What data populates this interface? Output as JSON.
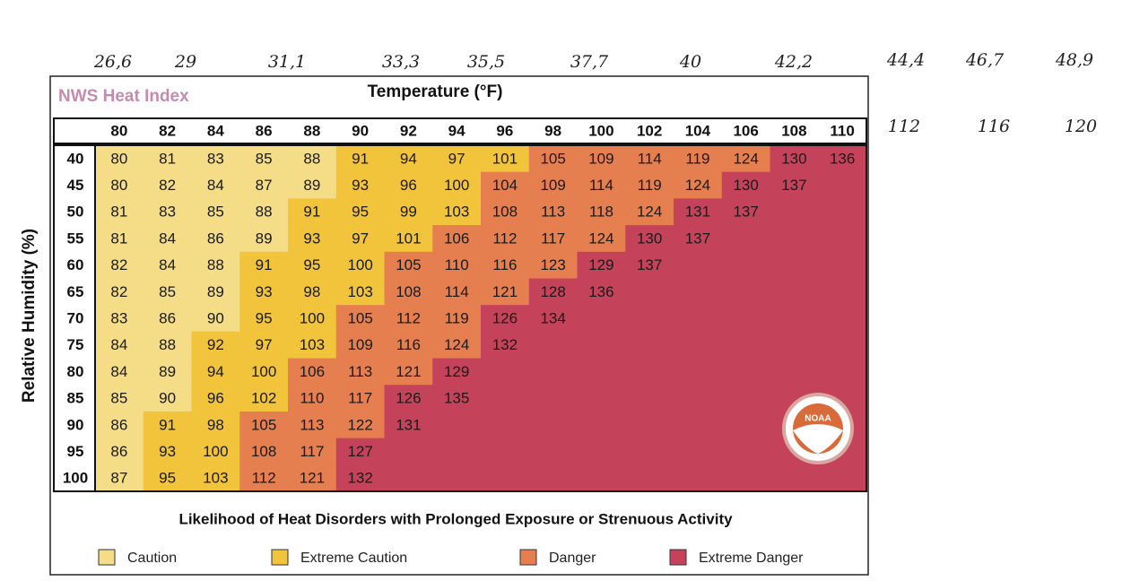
{
  "handwritten": {
    "celsius": [
      "26,6",
      "29",
      "31,1",
      "33,3",
      "35,5",
      "37,7",
      "40",
      "42,2",
      "44,4",
      "46,7",
      "48,9"
    ],
    "extra_fahrenheit": [
      "112",
      "116",
      "120"
    ]
  },
  "title": "NWS Heat Index",
  "column_header": "Temperature (°F)",
  "row_header": "Relative Humidity (%)",
  "table": {
    "columns": [
      80,
      82,
      84,
      86,
      88,
      90,
      92,
      94,
      96,
      98,
      100,
      102,
      104,
      106,
      108,
      110
    ],
    "rows": [
      {
        "humidity": 40,
        "values": [
          80,
          81,
          83,
          85,
          88,
          91,
          94,
          97,
          101,
          105,
          109,
          114,
          119,
          124,
          130,
          136
        ]
      },
      {
        "humidity": 45,
        "values": [
          80,
          82,
          84,
          87,
          89,
          93,
          96,
          100,
          104,
          109,
          114,
          119,
          124,
          130,
          137
        ]
      },
      {
        "humidity": 50,
        "values": [
          81,
          83,
          85,
          88,
          91,
          95,
          99,
          103,
          108,
          113,
          118,
          124,
          131,
          137
        ]
      },
      {
        "humidity": 55,
        "values": [
          81,
          84,
          86,
          89,
          93,
          97,
          101,
          106,
          112,
          117,
          124,
          130,
          137
        ]
      },
      {
        "humidity": 60,
        "values": [
          82,
          84,
          88,
          91,
          95,
          100,
          105,
          110,
          116,
          123,
          129,
          137
        ]
      },
      {
        "humidity": 65,
        "values": [
          82,
          85,
          89,
          93,
          98,
          103,
          108,
          114,
          121,
          128,
          136
        ]
      },
      {
        "humidity": 70,
        "values": [
          83,
          86,
          90,
          95,
          100,
          105,
          112,
          119,
          126,
          134
        ]
      },
      {
        "humidity": 75,
        "values": [
          84,
          88,
          92,
          97,
          103,
          109,
          116,
          124,
          132
        ]
      },
      {
        "humidity": 80,
        "values": [
          84,
          89,
          94,
          100,
          106,
          113,
          121,
          129
        ]
      },
      {
        "humidity": 85,
        "values": [
          85,
          90,
          96,
          102,
          110,
          117,
          126,
          135
        ]
      },
      {
        "humidity": 90,
        "values": [
          86,
          91,
          98,
          105,
          113,
          122,
          131
        ]
      },
      {
        "humidity": 95,
        "values": [
          86,
          93,
          100,
          108,
          117,
          127
        ]
      },
      {
        "humidity": 100,
        "values": [
          87,
          95,
          103,
          112,
          121,
          132
        ]
      }
    ]
  },
  "footer": "Likelihood of Heat Disorders with Prolonged Exposure or Strenuous Activity",
  "legend": [
    {
      "label": "Caution",
      "color": "#f4dd86"
    },
    {
      "label": "Extreme Caution",
      "color": "#f2c43c"
    },
    {
      "label": "Danger",
      "color": "#e67f4f"
    },
    {
      "label": "Extreme Danger",
      "color": "#c4435a"
    }
  ],
  "logo": "NOAA"
}
